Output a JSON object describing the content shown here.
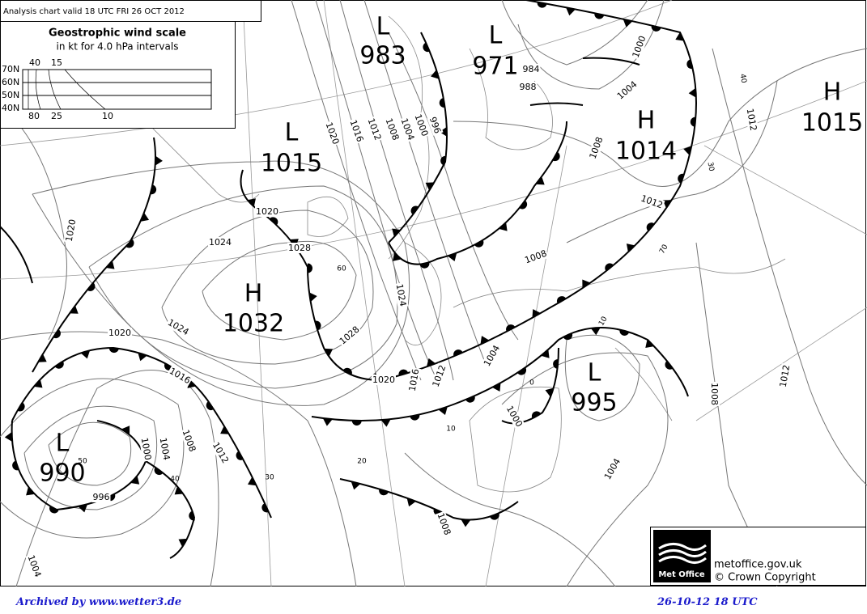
{
  "header": {
    "title": "Analysis chart  valid 18 UTC FRI 26  OCT 2012"
  },
  "wind_scale": {
    "title": "Geostrophic wind scale",
    "subtitle": "in kt for 4.0 hPa intervals",
    "top_labels": [
      "40",
      "15"
    ],
    "latitudes": [
      "70N",
      "60N",
      "50N",
      "40N"
    ],
    "bottom_labels": [
      "80",
      "25",
      "10"
    ]
  },
  "pressure_centers": [
    {
      "type": "L",
      "value": "983"
    },
    {
      "type": "L",
      "value": "971"
    },
    {
      "type": "L",
      "value": "1015"
    },
    {
      "type": "H",
      "value": "1014"
    },
    {
      "type": "H",
      "value": "1015"
    },
    {
      "type": "H",
      "value": "1032"
    },
    {
      "type": "L",
      "value": "990"
    },
    {
      "type": "L",
      "value": "995"
    }
  ],
  "isobar_labels": [
    "1020",
    "1016",
    "1012",
    "1008",
    "1004",
    "1000",
    "996",
    "984",
    "988",
    "1000",
    "1004",
    "1008",
    "1012",
    "1012",
    "1020",
    "1024",
    "1020",
    "1028",
    "1024",
    "1020",
    "1016",
    "1028",
    "1024",
    "1008",
    "1004",
    "1012",
    "1016",
    "1020",
    "1000",
    "1004",
    "1008",
    "1012",
    "1000",
    "1004",
    "1008",
    "1012",
    "996",
    "1004",
    "1008"
  ],
  "wind_labels": [
    "40",
    "30",
    "70",
    "60",
    "10",
    "0",
    "10",
    "20",
    "30",
    "40",
    "50"
  ],
  "logo": {
    "name": "Met Office",
    "site": "metoffice.gov.uk",
    "copyright": "© Crown Copyright"
  },
  "footer": {
    "archive": "Archived by www.wetter3.de",
    "date": "26-10-12 18 UTC"
  }
}
